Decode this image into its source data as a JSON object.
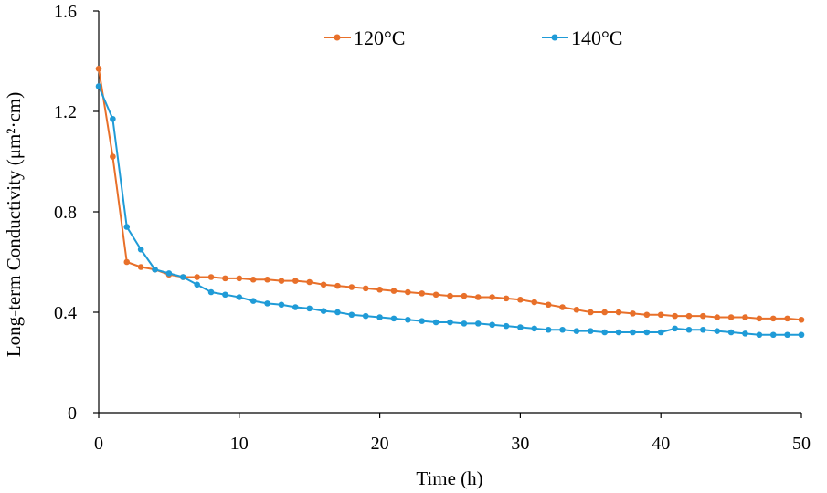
{
  "chart_data": {
    "type": "line",
    "title": "",
    "xlabel": "Time (h)",
    "ylabel": "Long-term Conductivity (μm²·cm)",
    "xlim": [
      0,
      50
    ],
    "ylim": [
      0,
      1.6
    ],
    "xticks": [
      0,
      10,
      20,
      30,
      40,
      50
    ],
    "xtick_labels": [
      "0",
      "10",
      "20",
      "30",
      "40",
      "50"
    ],
    "yticks": [
      0,
      0.4,
      0.8,
      1.2,
      1.6
    ],
    "ytick_labels": [
      "0",
      "0.4",
      "0.8",
      "1.2",
      "1.6"
    ],
    "grid": false,
    "legend_position": "top",
    "x": [
      0,
      1,
      2,
      3,
      4,
      5,
      6,
      7,
      8,
      9,
      10,
      11,
      12,
      13,
      14,
      15,
      16,
      17,
      18,
      19,
      20,
      21,
      22,
      23,
      24,
      25,
      26,
      27,
      28,
      29,
      30,
      31,
      32,
      33,
      34,
      35,
      36,
      37,
      38,
      39,
      40,
      41,
      42,
      43,
      44,
      45,
      46,
      47,
      48,
      49,
      50
    ],
    "series": [
      {
        "name": "120°C",
        "color": "#E8702A",
        "values": [
          1.37,
          1.02,
          0.6,
          0.58,
          0.57,
          0.55,
          0.54,
          0.54,
          0.54,
          0.535,
          0.535,
          0.53,
          0.53,
          0.525,
          0.525,
          0.52,
          0.51,
          0.505,
          0.5,
          0.495,
          0.49,
          0.485,
          0.48,
          0.475,
          0.47,
          0.465,
          0.465,
          0.46,
          0.46,
          0.455,
          0.45,
          0.44,
          0.43,
          0.42,
          0.41,
          0.4,
          0.4,
          0.4,
          0.395,
          0.39,
          0.39,
          0.385,
          0.385,
          0.385,
          0.38,
          0.38,
          0.38,
          0.375,
          0.375,
          0.375,
          0.37
        ]
      },
      {
        "name": "140°C",
        "color": "#1F9BD7",
        "values": [
          1.3,
          1.17,
          0.74,
          0.65,
          0.57,
          0.555,
          0.54,
          0.51,
          0.48,
          0.47,
          0.46,
          0.445,
          0.435,
          0.43,
          0.42,
          0.415,
          0.405,
          0.4,
          0.39,
          0.385,
          0.38,
          0.375,
          0.37,
          0.365,
          0.36,
          0.36,
          0.355,
          0.355,
          0.35,
          0.345,
          0.34,
          0.335,
          0.33,
          0.33,
          0.325,
          0.325,
          0.32,
          0.32,
          0.32,
          0.32,
          0.32,
          0.335,
          0.33,
          0.33,
          0.325,
          0.32,
          0.315,
          0.31,
          0.31,
          0.31,
          0.31
        ]
      }
    ]
  }
}
